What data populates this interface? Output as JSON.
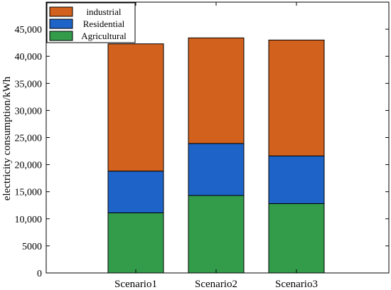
{
  "chart_data": {
    "type": "bar",
    "stacked": true,
    "categories": [
      "Scenario1",
      "Scenario2",
      "Scenario3"
    ],
    "series": [
      {
        "name": "Agricultural",
        "color": "#339c4b",
        "values": [
          11100,
          14300,
          12800
        ]
      },
      {
        "name": "Residential",
        "color": "#1e64c8",
        "values": [
          7700,
          9600,
          8800
        ]
      },
      {
        "name": "industrial",
        "color": "#d2611d",
        "values": [
          23500,
          19500,
          21400
        ]
      }
    ],
    "legend_order": [
      "industrial",
      "Residential",
      "Agricultural"
    ],
    "ylabel": "electricity consumption/kWh",
    "xlabel": "",
    "ylim": [
      0,
      50000
    ],
    "yticks": [
      0,
      5000,
      10000,
      15000,
      20000,
      25000,
      30000,
      35000,
      40000,
      45000
    ],
    "ytick_labels": [
      "0",
      "5000",
      "10,000",
      "15,000",
      "20,000",
      "25,000",
      "30,000",
      "35,000",
      "40,000",
      "45,000"
    ],
    "legend_position": "top-left",
    "grid": false
  }
}
